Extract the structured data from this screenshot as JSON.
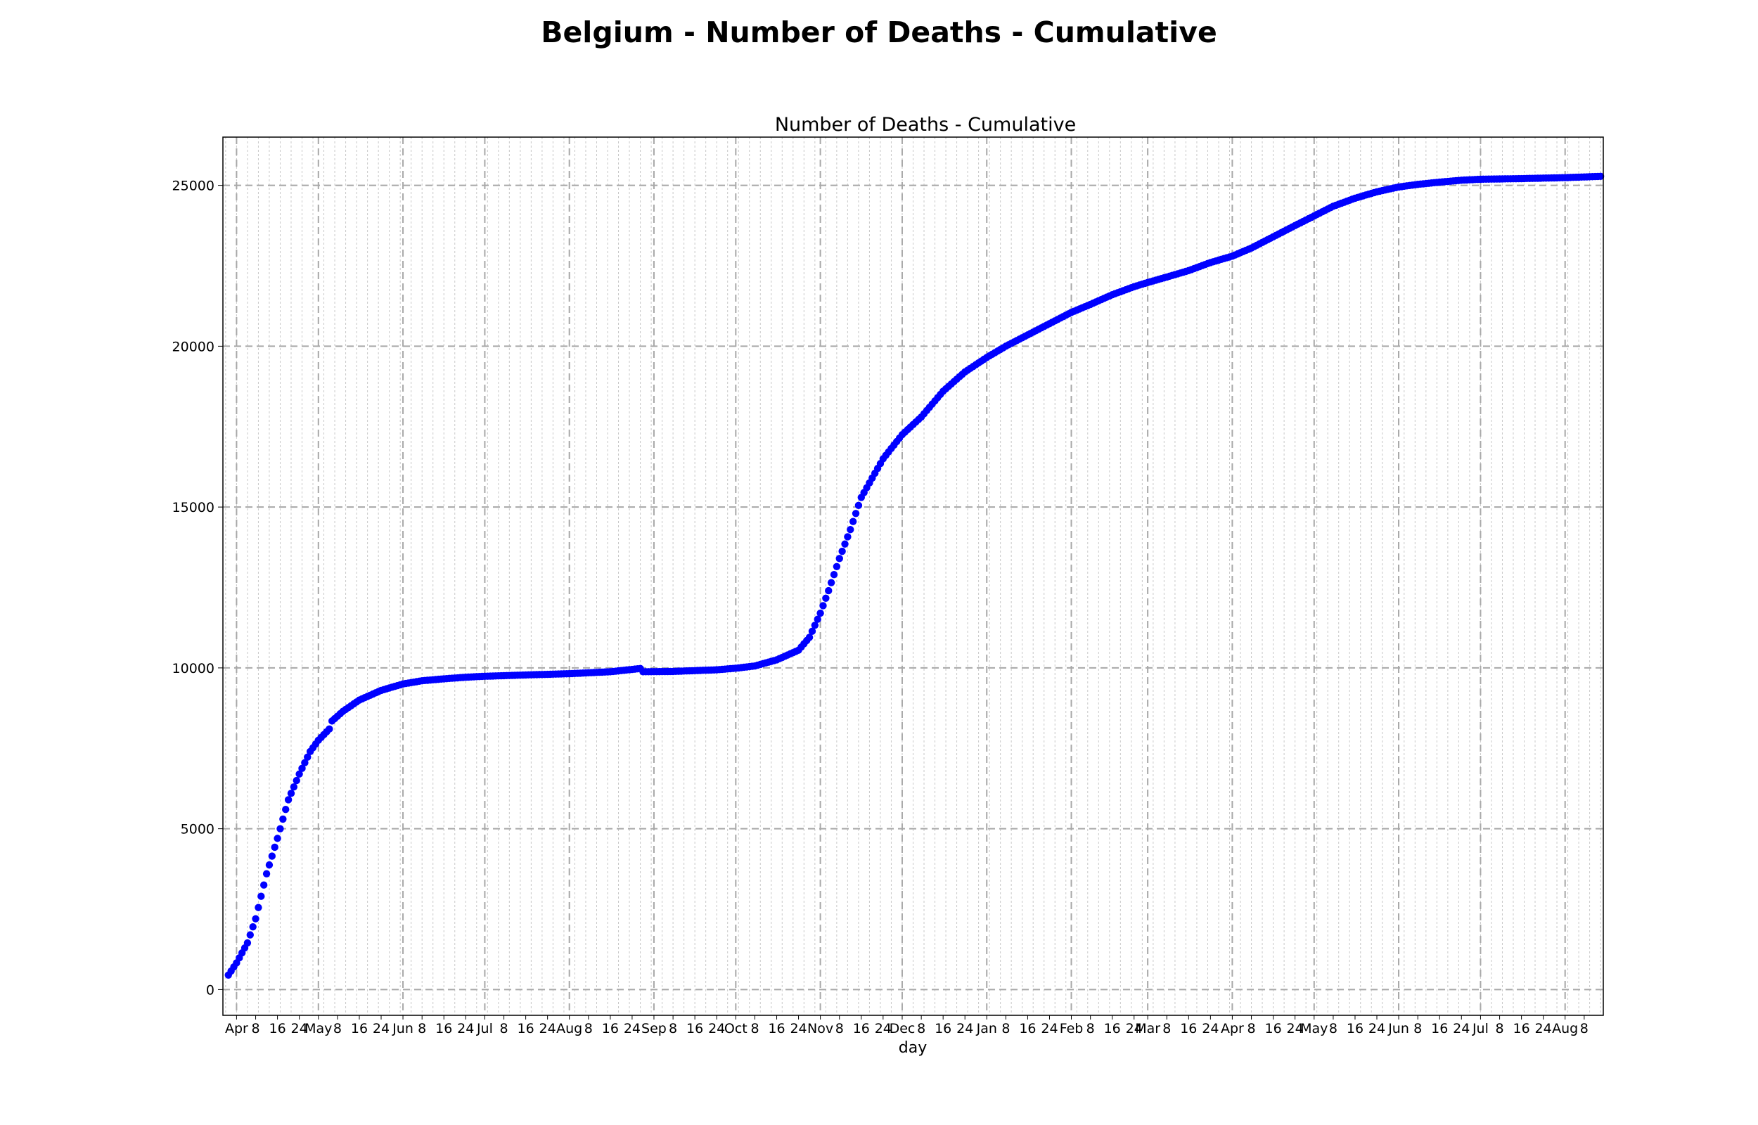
{
  "figure": {
    "suptitle": "Belgium - Number of Deaths - Cumulative"
  },
  "chart_data": {
    "type": "scatter",
    "title": "Number of Deaths - Cumulative",
    "xlabel": "day",
    "ylabel": "",
    "ylim": [
      -800,
      26500
    ],
    "xlim": [
      "2020-03-27",
      "2021-08-15"
    ],
    "y_ticks": [
      0,
      5000,
      10000,
      15000,
      20000,
      25000
    ],
    "grid": true,
    "marker_color": "#0000ff",
    "x_tick_labels": [
      {
        "date": "2020-04-01",
        "label": "Apr"
      },
      {
        "date": "2020-04-08",
        "label": "8"
      },
      {
        "date": "2020-04-16",
        "label": "16"
      },
      {
        "date": "2020-04-24",
        "label": "24"
      },
      {
        "date": "2020-05-01",
        "label": "May"
      },
      {
        "date": "2020-05-08",
        "label": "8"
      },
      {
        "date": "2020-05-16",
        "label": "16"
      },
      {
        "date": "2020-05-24",
        "label": "24"
      },
      {
        "date": "2020-06-01",
        "label": "Jun"
      },
      {
        "date": "2020-06-08",
        "label": "8"
      },
      {
        "date": "2020-06-16",
        "label": "16"
      },
      {
        "date": "2020-06-24",
        "label": "24"
      },
      {
        "date": "2020-07-01",
        "label": "Jul"
      },
      {
        "date": "2020-07-08",
        "label": "8"
      },
      {
        "date": "2020-07-16",
        "label": "16"
      },
      {
        "date": "2020-07-24",
        "label": "24"
      },
      {
        "date": "2020-08-01",
        "label": "Aug"
      },
      {
        "date": "2020-08-08",
        "label": "8"
      },
      {
        "date": "2020-08-16",
        "label": "16"
      },
      {
        "date": "2020-08-24",
        "label": "24"
      },
      {
        "date": "2020-09-01",
        "label": "Sep"
      },
      {
        "date": "2020-09-08",
        "label": "8"
      },
      {
        "date": "2020-09-16",
        "label": "16"
      },
      {
        "date": "2020-09-24",
        "label": "24"
      },
      {
        "date": "2020-10-01",
        "label": "Oct"
      },
      {
        "date": "2020-10-08",
        "label": "8"
      },
      {
        "date": "2020-10-16",
        "label": "16"
      },
      {
        "date": "2020-10-24",
        "label": "24"
      },
      {
        "date": "2020-11-01",
        "label": "Nov"
      },
      {
        "date": "2020-11-08",
        "label": "8"
      },
      {
        "date": "2020-11-16",
        "label": "16"
      },
      {
        "date": "2020-11-24",
        "label": "24"
      },
      {
        "date": "2020-12-01",
        "label": "Dec"
      },
      {
        "date": "2020-12-08",
        "label": "8"
      },
      {
        "date": "2020-12-16",
        "label": "16"
      },
      {
        "date": "2020-12-24",
        "label": "24"
      },
      {
        "date": "2021-01-01",
        "label": "Jan"
      },
      {
        "date": "2021-01-08",
        "label": "8"
      },
      {
        "date": "2021-01-16",
        "label": "16"
      },
      {
        "date": "2021-01-24",
        "label": "24"
      },
      {
        "date": "2021-02-01",
        "label": "Feb"
      },
      {
        "date": "2021-02-08",
        "label": "8"
      },
      {
        "date": "2021-02-16",
        "label": "16"
      },
      {
        "date": "2021-02-24",
        "label": "24"
      },
      {
        "date": "2021-03-01",
        "label": "Mar"
      },
      {
        "date": "2021-03-08",
        "label": "8"
      },
      {
        "date": "2021-03-16",
        "label": "16"
      },
      {
        "date": "2021-03-24",
        "label": "24"
      },
      {
        "date": "2021-04-01",
        "label": "Apr"
      },
      {
        "date": "2021-04-08",
        "label": "8"
      },
      {
        "date": "2021-04-16",
        "label": "16"
      },
      {
        "date": "2021-04-24",
        "label": "24"
      },
      {
        "date": "2021-05-01",
        "label": "May"
      },
      {
        "date": "2021-05-08",
        "label": "8"
      },
      {
        "date": "2021-05-16",
        "label": "16"
      },
      {
        "date": "2021-05-24",
        "label": "24"
      },
      {
        "date": "2021-06-01",
        "label": "Jun"
      },
      {
        "date": "2021-06-08",
        "label": "8"
      },
      {
        "date": "2021-06-16",
        "label": "16"
      },
      {
        "date": "2021-06-24",
        "label": "24"
      },
      {
        "date": "2021-07-01",
        "label": "Jul"
      },
      {
        "date": "2021-07-08",
        "label": "8"
      },
      {
        "date": "2021-07-16",
        "label": "16"
      },
      {
        "date": "2021-07-24",
        "label": "24"
      },
      {
        "date": "2021-08-01",
        "label": "Aug"
      },
      {
        "date": "2021-08-08",
        "label": "8"
      }
    ],
    "series": [
      {
        "x_start": "2020-03-29",
        "x_step_days": 1,
        "y_anchors": [
          [
            "2020-03-29",
            450
          ],
          [
            "2020-04-01",
            830
          ],
          [
            "2020-04-05",
            1450
          ],
          [
            "2020-04-08",
            2200
          ],
          [
            "2020-04-12",
            3600
          ],
          [
            "2020-04-16",
            4700
          ],
          [
            "2020-04-20",
            5900
          ],
          [
            "2020-04-24",
            6700
          ],
          [
            "2020-04-28",
            7400
          ],
          [
            "2020-05-01",
            7750
          ],
          [
            "2020-05-05",
            8100
          ],
          [
            "2020-05-06",
            8350
          ],
          [
            "2020-05-10",
            8650
          ],
          [
            "2020-05-16",
            9000
          ],
          [
            "2020-05-24",
            9300
          ],
          [
            "2020-06-01",
            9500
          ],
          [
            "2020-06-08",
            9600
          ],
          [
            "2020-06-16",
            9660
          ],
          [
            "2020-06-24",
            9710
          ],
          [
            "2020-07-01",
            9740
          ],
          [
            "2020-07-16",
            9780
          ],
          [
            "2020-08-01",
            9820
          ],
          [
            "2020-08-16",
            9880
          ],
          [
            "2020-08-27",
            9980
          ],
          [
            "2020-08-28",
            9880
          ],
          [
            "2020-09-08",
            9890
          ],
          [
            "2020-09-24",
            9940
          ],
          [
            "2020-10-01",
            9990
          ],
          [
            "2020-10-08",
            10060
          ],
          [
            "2020-10-16",
            10250
          ],
          [
            "2020-10-20",
            10400
          ],
          [
            "2020-10-24",
            10550
          ],
          [
            "2020-10-28",
            10950
          ],
          [
            "2020-11-01",
            11700
          ],
          [
            "2020-11-04",
            12400
          ],
          [
            "2020-11-08",
            13400
          ],
          [
            "2020-11-12",
            14300
          ],
          [
            "2020-11-16",
            15300
          ],
          [
            "2020-11-20",
            15900
          ],
          [
            "2020-11-24",
            16500
          ],
          [
            "2020-12-01",
            17250
          ],
          [
            "2020-12-08",
            17800
          ],
          [
            "2020-12-16",
            18600
          ],
          [
            "2020-12-24",
            19200
          ],
          [
            "2021-01-01",
            19650
          ],
          [
            "2021-01-08",
            20000
          ],
          [
            "2021-01-16",
            20350
          ],
          [
            "2021-01-24",
            20700
          ],
          [
            "2021-02-01",
            21050
          ],
          [
            "2021-02-08",
            21300
          ],
          [
            "2021-02-16",
            21600
          ],
          [
            "2021-02-24",
            21850
          ],
          [
            "2021-03-01",
            21980
          ],
          [
            "2021-03-08",
            22150
          ],
          [
            "2021-03-16",
            22350
          ],
          [
            "2021-03-24",
            22600
          ],
          [
            "2021-04-01",
            22800
          ],
          [
            "2021-04-08",
            23050
          ],
          [
            "2021-04-16",
            23400
          ],
          [
            "2021-04-24",
            23750
          ],
          [
            "2021-05-01",
            24050
          ],
          [
            "2021-05-08",
            24350
          ],
          [
            "2021-05-16",
            24600
          ],
          [
            "2021-05-24",
            24800
          ],
          [
            "2021-06-01",
            24950
          ],
          [
            "2021-06-08",
            25030
          ],
          [
            "2021-06-16",
            25100
          ],
          [
            "2021-06-24",
            25160
          ],
          [
            "2021-07-01",
            25190
          ],
          [
            "2021-07-16",
            25210
          ],
          [
            "2021-08-01",
            25240
          ],
          [
            "2021-08-14",
            25280
          ]
        ]
      }
    ]
  }
}
